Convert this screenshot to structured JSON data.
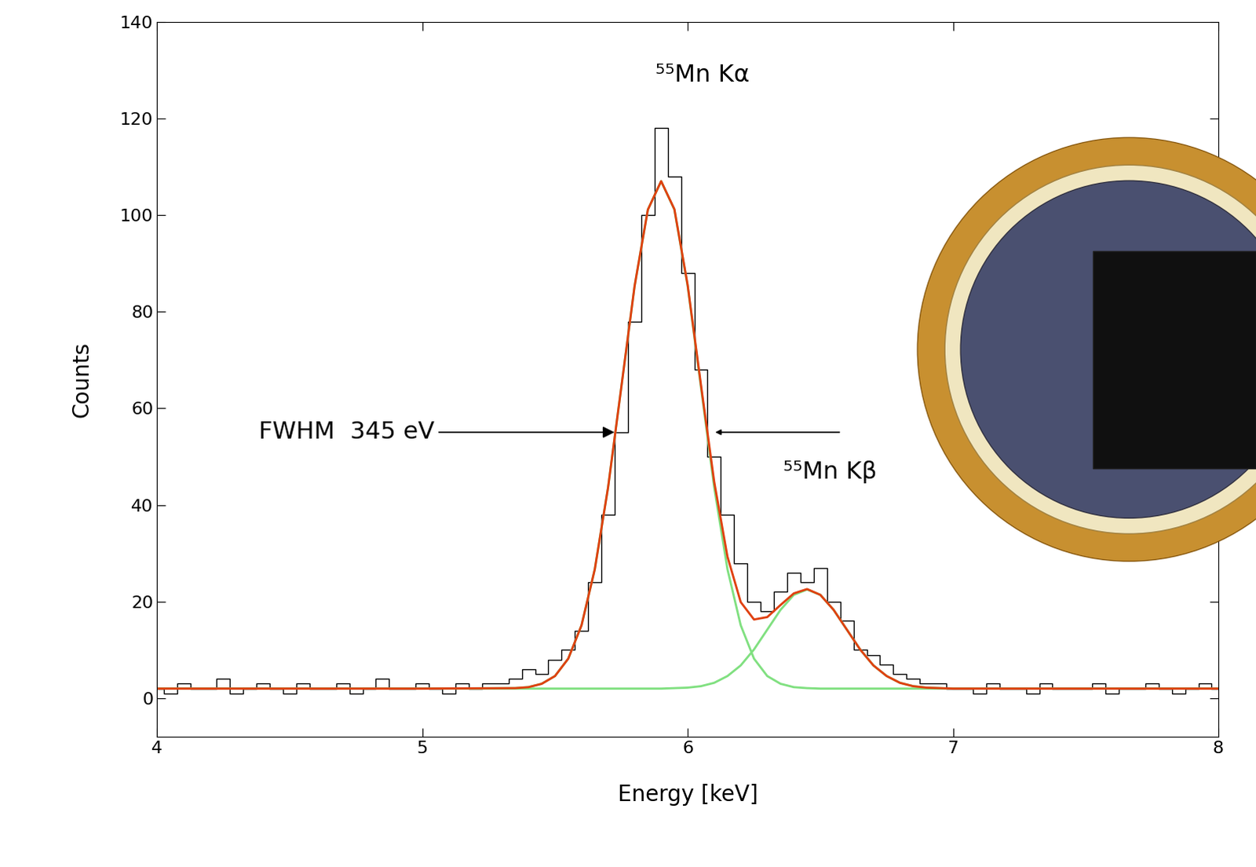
{
  "chart_data": {
    "type": "line",
    "xlabel": "Energy [keV]",
    "ylabel": "Counts",
    "xlim": [
      4,
      8
    ],
    "ylim": [
      -8,
      140
    ],
    "xticks": [
      4,
      5,
      6,
      7,
      8
    ],
    "yticks": [
      0,
      20,
      40,
      60,
      80,
      100,
      120,
      140
    ],
    "grid": false,
    "annotations": [
      "⁵⁵Mn Kα",
      "⁵⁵Mn Kβ",
      "FWHM  345 eV"
    ],
    "series": [
      {
        "color": "#000000",
        "line_style": "steps",
        "x": [
          4.0,
          4.05,
          4.1,
          4.15,
          4.2,
          4.25,
          4.3,
          4.35,
          4.4,
          4.45,
          4.5,
          4.55,
          4.6,
          4.65,
          4.7,
          4.75,
          4.8,
          4.85,
          4.9,
          4.95,
          5.0,
          5.05,
          5.1,
          5.15,
          5.2,
          5.25,
          5.3,
          5.35,
          5.4,
          5.45,
          5.5,
          5.55,
          5.6,
          5.65,
          5.7,
          5.75,
          5.8,
          5.85,
          5.9,
          5.95,
          6.0,
          6.05,
          6.1,
          6.15,
          6.2,
          6.25,
          6.3,
          6.35,
          6.4,
          6.45,
          6.5,
          6.55,
          6.6,
          6.65,
          6.7,
          6.75,
          6.8,
          6.85,
          6.9,
          6.95,
          7.0,
          7.05,
          7.1,
          7.15,
          7.2,
          7.25,
          7.3,
          7.35,
          7.4,
          7.45,
          7.5,
          7.55,
          7.6,
          7.65,
          7.7,
          7.75,
          7.8,
          7.85,
          7.9,
          7.95,
          8.0
        ],
        "values": [
          2,
          1,
          3,
          2,
          2,
          4,
          1,
          2,
          3,
          2,
          1,
          3,
          2,
          2,
          3,
          1,
          2,
          4,
          2,
          2,
          3,
          2,
          1,
          3,
          2,
          3,
          3,
          4,
          6,
          5,
          8,
          10,
          14,
          24,
          38,
          55,
          78,
          100,
          118,
          108,
          88,
          68,
          50,
          38,
          28,
          20,
          18,
          22,
          26,
          24,
          27,
          20,
          16,
          10,
          9,
          7,
          5,
          4,
          3,
          3,
          2,
          2,
          1,
          3,
          2,
          2,
          1,
          3,
          2,
          2,
          2,
          3,
          1,
          2,
          2,
          3,
          2,
          1,
          2,
          3,
          2
        ]
      },
      {
        "color": "#80e080",
        "line_style": "solid",
        "x": [
          4.0,
          5.0,
          5.35,
          5.4,
          5.45,
          5.5,
          5.55,
          5.6,
          5.65,
          5.7,
          5.75,
          5.8,
          5.85,
          5.9,
          5.95,
          6.0,
          6.05,
          6.1,
          6.15,
          6.2,
          6.25,
          6.3,
          6.35,
          6.4,
          6.45,
          6.5,
          6.55,
          6.6,
          6.65,
          6.7,
          6.75,
          6.8,
          6.85,
          6.9,
          6.95,
          7.0,
          7.5,
          8.0
        ],
        "values": [
          2,
          2,
          2.1,
          2.3,
          3.0,
          4.6,
          8.2,
          15.1,
          26.7,
          43.6,
          64.4,
          85.3,
          101.1,
          107,
          101.1,
          85.3,
          64.4,
          43.6,
          26.7,
          15.1,
          8.2,
          4.6,
          3.0,
          2.3,
          2.1,
          2,
          2,
          2,
          2,
          2,
          2,
          2,
          2,
          2,
          2,
          2,
          2,
          2
        ]
      },
      {
        "color": "#80e080",
        "line_style": "solid",
        "x": [
          4.0,
          5.0,
          5.35,
          5.4,
          5.45,
          5.5,
          5.55,
          5.6,
          5.65,
          5.7,
          5.75,
          5.8,
          5.85,
          5.9,
          5.95,
          6.0,
          6.05,
          6.1,
          6.15,
          6.2,
          6.25,
          6.3,
          6.35,
          6.4,
          6.45,
          6.5,
          6.55,
          6.6,
          6.65,
          6.7,
          6.75,
          6.8,
          6.85,
          6.9,
          6.95,
          7.0,
          7.5,
          8.0
        ],
        "values": [
          2,
          2,
          2,
          2,
          2,
          2,
          2,
          2,
          2,
          2,
          2,
          2,
          2,
          2,
          2.1,
          2.2,
          2.5,
          3.2,
          4.6,
          6.8,
          10.1,
          14.2,
          18.3,
          21.4,
          22.5,
          21.4,
          18.3,
          14.2,
          10.1,
          6.8,
          4.6,
          3.2,
          2.5,
          2.2,
          2.1,
          2,
          2,
          2
        ]
      },
      {
        "color": "#e04010",
        "line_style": "solid",
        "x": [
          4.0,
          5.0,
          5.35,
          5.4,
          5.45,
          5.5,
          5.55,
          5.6,
          5.65,
          5.7,
          5.75,
          5.8,
          5.85,
          5.9,
          5.95,
          6.0,
          6.05,
          6.1,
          6.15,
          6.2,
          6.25,
          6.3,
          6.35,
          6.4,
          6.45,
          6.5,
          6.55,
          6.6,
          6.65,
          6.7,
          6.75,
          6.8,
          6.85,
          6.9,
          6.95,
          7.0,
          7.5,
          8.0
        ],
        "values": [
          2,
          2,
          2.1,
          2.3,
          3.0,
          4.6,
          8.2,
          15.1,
          26.7,
          43.6,
          64.4,
          85.3,
          101.1,
          107,
          101.2,
          85.5,
          64.9,
          44.8,
          29.3,
          19.9,
          16.3,
          16.8,
          19.3,
          21.7,
          22.6,
          21.4,
          18.3,
          14.2,
          10.1,
          6.8,
          4.6,
          3.2,
          2.5,
          2.2,
          2.1,
          2,
          2,
          2
        ]
      }
    ]
  }
}
